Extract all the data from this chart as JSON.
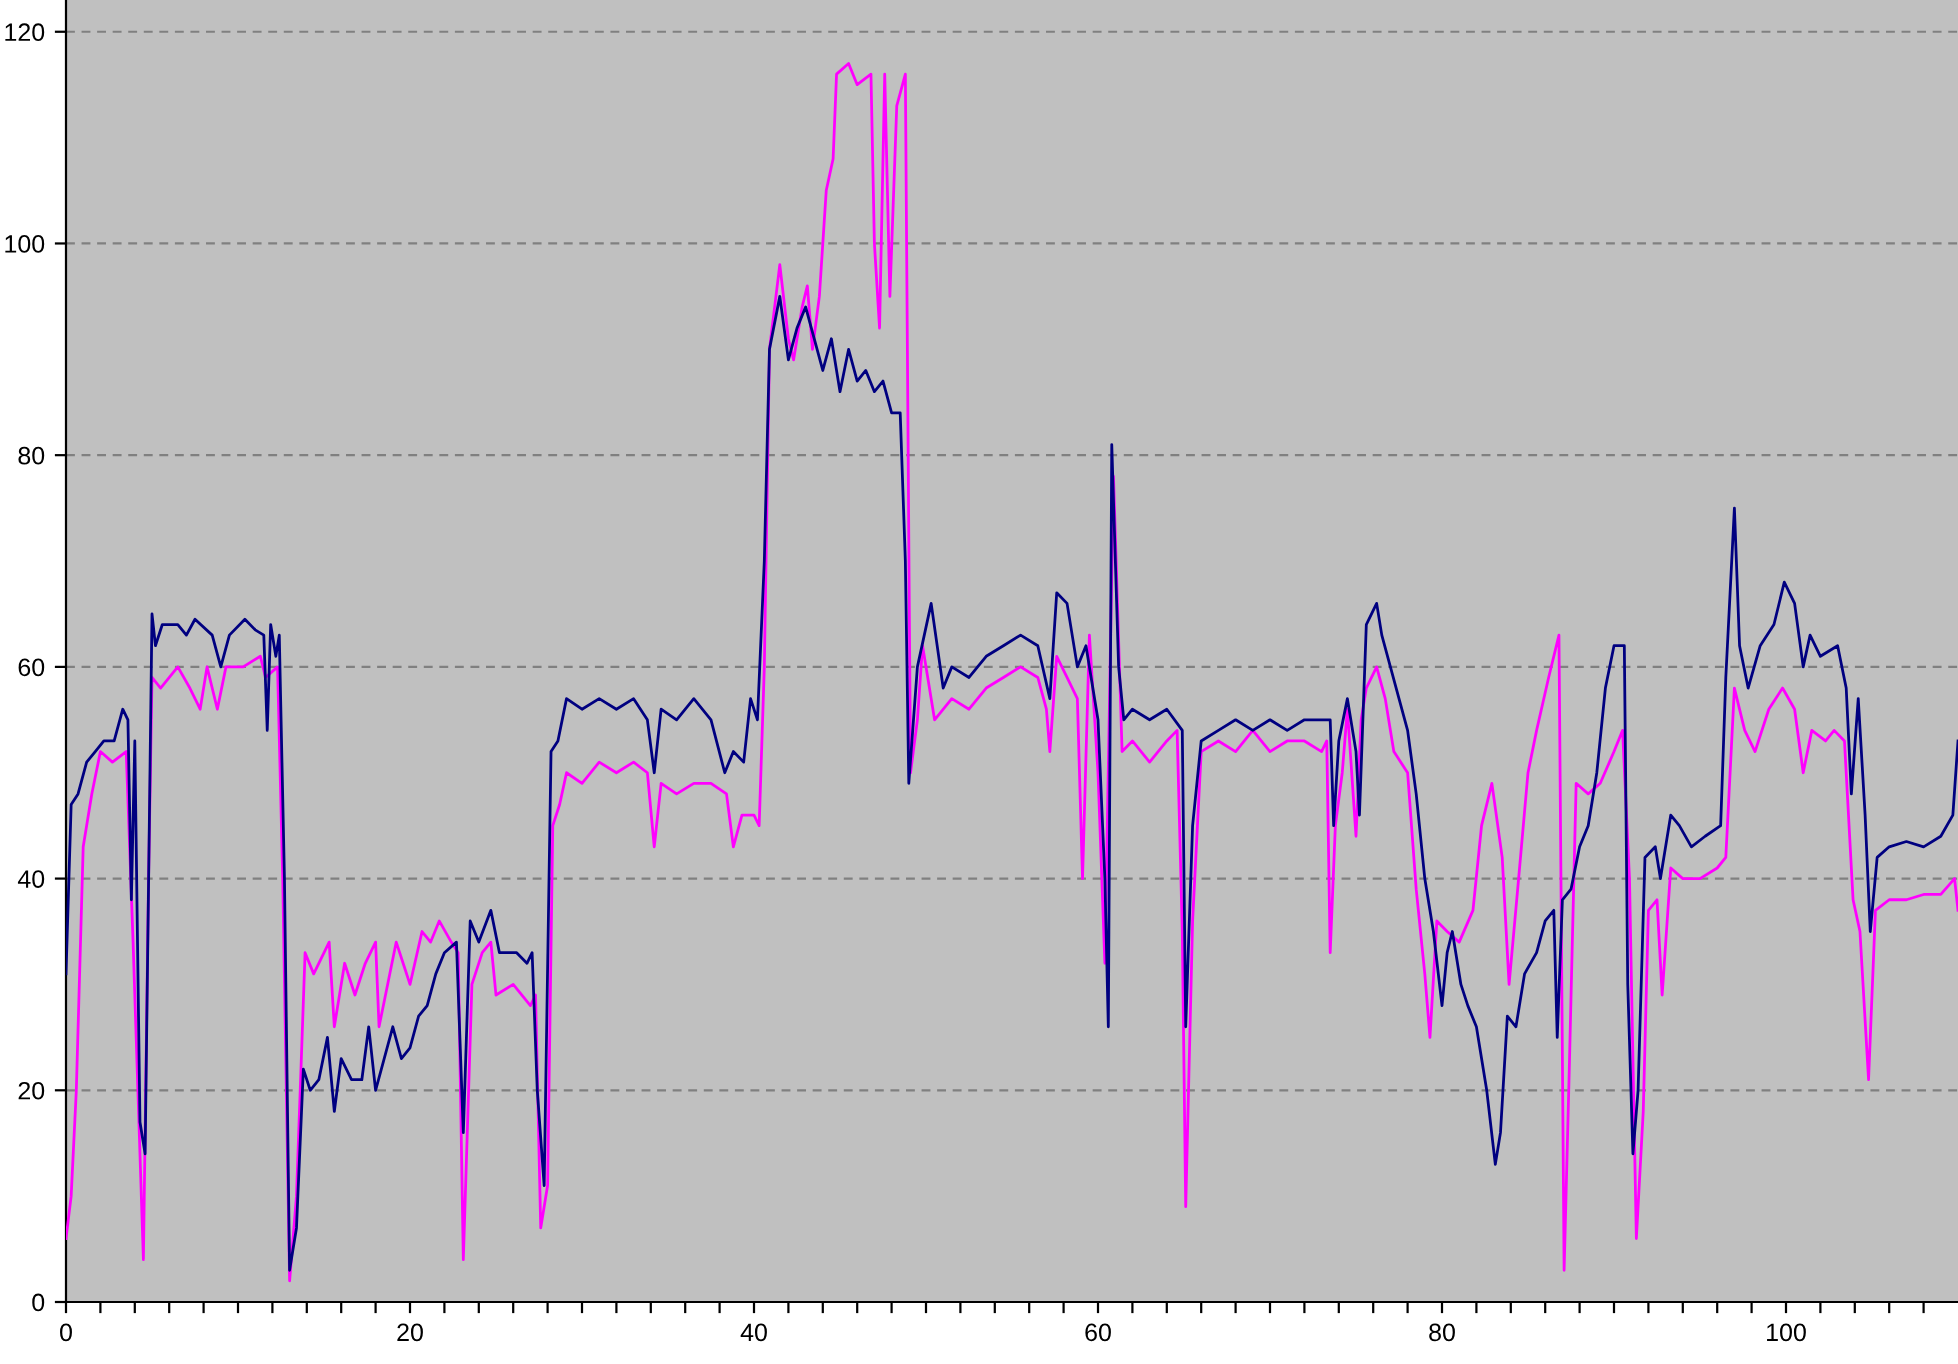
{
  "chart_data": {
    "type": "line",
    "xlim": [
      0,
      110
    ],
    "ylim": [
      0,
      123
    ],
    "xticks": [
      0,
      {
        "value": 2,
        "label": null
      },
      {
        "value": 4,
        "label": null
      },
      {
        "value": 6,
        "label": null
      },
      {
        "value": 8,
        "label": null
      },
      {
        "value": 10,
        "label": null
      },
      {
        "value": 12,
        "label": null
      },
      {
        "value": 14,
        "label": null
      },
      {
        "value": 16,
        "label": null
      },
      {
        "value": 18,
        "label": null
      },
      20,
      {
        "value": 22,
        "label": null
      },
      {
        "value": 24,
        "label": null
      },
      {
        "value": 26,
        "label": null
      },
      {
        "value": 28,
        "label": null
      },
      {
        "value": 30,
        "label": null
      },
      {
        "value": 32,
        "label": null
      },
      {
        "value": 34,
        "label": null
      },
      {
        "value": 36,
        "label": null
      },
      {
        "value": 38,
        "label": null
      },
      40,
      {
        "value": 42,
        "label": null
      },
      {
        "value": 44,
        "label": null
      },
      {
        "value": 46,
        "label": null
      },
      {
        "value": 48,
        "label": null
      },
      {
        "value": 50,
        "label": null
      },
      {
        "value": 52,
        "label": null
      },
      {
        "value": 54,
        "label": null
      },
      {
        "value": 56,
        "label": null
      },
      {
        "value": 58,
        "label": null
      },
      60,
      {
        "value": 62,
        "label": null
      },
      {
        "value": 64,
        "label": null
      },
      {
        "value": 66,
        "label": null
      },
      {
        "value": 68,
        "label": null
      },
      {
        "value": 70,
        "label": null
      },
      {
        "value": 72,
        "label": null
      },
      {
        "value": 74,
        "label": null
      },
      {
        "value": 76,
        "label": null
      },
      {
        "value": 78,
        "label": null
      },
      80,
      {
        "value": 82,
        "label": null
      },
      {
        "value": 84,
        "label": null
      },
      {
        "value": 86,
        "label": null
      },
      {
        "value": 88,
        "label": null
      },
      {
        "value": 90,
        "label": null
      },
      {
        "value": 92,
        "label": null
      },
      {
        "value": 94,
        "label": null
      },
      {
        "value": 96,
        "label": null
      },
      {
        "value": 98,
        "label": null
      },
      100,
      {
        "value": 102,
        "label": null
      },
      {
        "value": 104,
        "label": null
      },
      {
        "value": 106,
        "label": null
      },
      {
        "value": 108,
        "label": null
      }
    ],
    "yticks": [
      0,
      20,
      40,
      60,
      80,
      100,
      120
    ],
    "grid": "y",
    "line_style": "solid",
    "series": [
      {
        "color": "#000080",
        "x": [
          0,
          0.3,
          0.7,
          1.2,
          1.7,
          2.2,
          2.8,
          3.3,
          3.6,
          3.8,
          4.0,
          4.3,
          4.6,
          5.0,
          5.2,
          5.6,
          6.5,
          7.0,
          7.5,
          8.5,
          9.0,
          9.5,
          10.4,
          11.0,
          11.5,
          11.7,
          11.9,
          12.2,
          12.4,
          12.7,
          13.0,
          13.4,
          13.8,
          14.2,
          14.7,
          15.2,
          15.6,
          16.0,
          16.6,
          17.2,
          17.6,
          18.0,
          18.5,
          19.0,
          19.5,
          20.0,
          20.5,
          21.0,
          21.5,
          22.0,
          22.7,
          23.1,
          23.5,
          24.0,
          24.7,
          25.2,
          26.2,
          26.8,
          27.1,
          27.4,
          27.8,
          28.2,
          28.6,
          29.1,
          30.0,
          31.0,
          32.0,
          33.0,
          33.8,
          34.2,
          34.6,
          35.5,
          36.5,
          37.5,
          38.3,
          38.8,
          39.4,
          39.8,
          40.2,
          40.6,
          40.9,
          41.5,
          42.0,
          42.5,
          43.0,
          43.5,
          44.0,
          44.5,
          45.0,
          45.5,
          46.0,
          46.5,
          47.0,
          47.5,
          48.0,
          48.5,
          48.8,
          49.0,
          49.5,
          50.3,
          51.0,
          51.5,
          52.5,
          53.5,
          54.5,
          55.5,
          56.5,
          57.2,
          57.6,
          58.2,
          58.8,
          59.3,
          60.0,
          60.4,
          60.6,
          60.8,
          61.2,
          61.5,
          62.0,
          63.0,
          64.0,
          64.9,
          65.1,
          65.5,
          66.0,
          67.0,
          68.0,
          69.0,
          70.0,
          71.0,
          72.0,
          73.0,
          73.5,
          73.7,
          74.0,
          74.5,
          75.0,
          75.2,
          75.6,
          76.2,
          76.5,
          77.0,
          77.5,
          78.0,
          78.5,
          79.0,
          79.5,
          80.0,
          80.3,
          80.6,
          81.1,
          81.5,
          82.0,
          82.6,
          83.1,
          83.4,
          83.8,
          84.3,
          84.8,
          85.5,
          86.0,
          86.5,
          86.7,
          87.0,
          87.5,
          88.0,
          88.5,
          89.0,
          89.5,
          90.0,
          90.6,
          90.8,
          91.1,
          91.4,
          91.8,
          92.4,
          92.7,
          93.3,
          93.8,
          94.5,
          95.3,
          96.2,
          96.5,
          97.0,
          97.3,
          97.8,
          98.5,
          99.3,
          99.9,
          100.5,
          101.0,
          101.4,
          102.0,
          103.0,
          103.5,
          103.8,
          104.2,
          104.6,
          104.9,
          105.3,
          106.0,
          107.0,
          108.0,
          109.0,
          109.7,
          110.0
        ],
        "values": [
          31,
          47,
          48,
          51,
          52,
          53,
          53,
          56,
          55,
          38,
          53,
          17,
          14,
          65,
          62,
          64,
          64,
          63,
          64.5,
          63,
          60,
          63,
          64.5,
          63.5,
          63,
          54,
          64,
          61,
          63,
          40,
          3,
          7,
          22,
          20,
          21,
          25,
          18,
          23,
          21,
          21,
          26,
          20,
          23,
          26,
          23,
          24,
          27,
          28,
          31,
          33,
          34,
          16,
          36,
          34,
          37,
          33,
          33,
          32,
          33,
          20,
          11,
          52,
          53,
          57,
          56,
          57,
          56,
          57,
          55,
          50,
          56,
          55,
          57,
          55,
          50,
          52,
          51,
          57,
          55,
          70,
          90,
          95,
          89,
          92,
          94,
          91,
          88,
          91,
          86,
          90,
          87,
          88,
          86,
          87,
          84,
          84,
          70,
          49,
          60,
          66,
          58,
          60,
          59,
          61,
          62,
          63,
          62,
          57,
          67,
          66,
          60,
          62,
          55,
          40,
          26,
          81,
          60,
          55,
          56,
          55,
          56,
          54,
          26,
          45,
          53,
          54,
          55,
          54,
          55,
          54,
          55,
          55,
          55,
          45,
          53,
          57,
          52,
          46,
          64,
          66,
          63,
          60,
          57,
          54,
          48,
          40,
          35,
          28,
          33,
          35,
          30,
          28,
          26,
          20,
          13,
          16,
          27,
          26,
          31,
          33,
          36,
          37,
          25,
          38,
          39,
          43,
          45,
          50,
          58,
          62,
          62,
          30,
          14,
          20,
          42,
          43,
          40,
          46,
          45,
          43,
          44,
          45,
          59,
          75,
          62,
          58,
          62,
          64,
          68,
          66,
          60,
          63,
          61,
          62,
          58,
          48,
          57,
          46,
          35,
          42,
          43,
          43.5,
          43,
          44,
          46,
          53
        ]
      },
      {
        "color": "#ff00ff",
        "x": [
          0,
          0.3,
          0.6,
          1.0,
          1.5,
          2.0,
          2.7,
          3.5,
          3.9,
          4.5,
          4.8,
          5.0,
          5.5,
          6.5,
          7.2,
          7.8,
          8.2,
          8.8,
          9.3,
          10.3,
          11.3,
          11.6,
          12.3,
          12.6,
          13.0,
          13.4,
          13.9,
          14.4,
          15.3,
          15.6,
          16.2,
          16.8,
          17.4,
          18.0,
          18.2,
          18.7,
          19.2,
          19.6,
          20.0,
          20.7,
          21.2,
          21.7,
          22.4,
          22.8,
          23.1,
          23.6,
          24.2,
          24.7,
          25.0,
          26.0,
          27.0,
          27.3,
          27.6,
          28.0,
          28.3,
          28.7,
          29.1,
          30.0,
          31.0,
          32.0,
          33.0,
          33.8,
          34.2,
          34.6,
          35.5,
          36.5,
          37.5,
          38.4,
          38.8,
          39.3,
          40.0,
          40.3,
          40.6,
          40.9,
          41.5,
          42.0,
          42.3,
          42.8,
          43.1,
          43.4,
          43.8,
          44.2,
          44.6,
          44.8,
          45.5,
          46.0,
          46.8,
          47.0,
          47.3,
          47.6,
          47.9,
          48.3,
          48.8,
          49.1,
          49.5,
          49.8,
          50.5,
          51.5,
          52.5,
          53.5,
          54.5,
          55.5,
          56.5,
          57.0,
          57.2,
          57.6,
          58.2,
          58.8,
          59.1,
          59.5,
          60.0,
          60.4,
          60.9,
          61.4,
          62.0,
          63.0,
          64.0,
          64.6,
          64.9,
          65.1,
          65.5,
          66.0,
          67.0,
          68.0,
          69.0,
          70.0,
          71.0,
          72.0,
          73.0,
          73.3,
          73.5,
          73.8,
          74.2,
          74.5,
          75.0,
          75.3,
          75.6,
          76.2,
          76.7,
          77.2,
          78.0,
          78.5,
          79.0,
          79.3,
          79.7,
          80.3,
          81.0,
          81.8,
          82.3,
          82.9,
          83.5,
          83.9,
          84.4,
          85.0,
          85.5,
          86.2,
          86.8,
          87.1,
          87.4,
          87.8,
          88.5,
          89.2,
          90.0,
          90.5,
          90.9,
          91.3,
          91.7,
          92.0,
          92.5,
          92.8,
          93.3,
          94.0,
          95.0,
          96.0,
          96.5,
          97.0,
          97.6,
          98.2,
          99.0,
          99.8,
          100.5,
          101.0,
          101.5,
          102.3,
          102.8,
          103.4,
          103.9,
          104.3,
          104.8,
          105.2,
          106.0,
          107.0,
          108.0,
          109.0,
          109.8,
          110.0
        ],
        "values": [
          6,
          10,
          20,
          43,
          48,
          52,
          51,
          52,
          34,
          4,
          40,
          59,
          58,
          60,
          58,
          56,
          60,
          56,
          60,
          60,
          61,
          59,
          60,
          40,
          2,
          10,
          33,
          31,
          34,
          26,
          32,
          29,
          32,
          34,
          26,
          30,
          34,
          32,
          30,
          35,
          34,
          36,
          34,
          33,
          4,
          30,
          33,
          34,
          29,
          30,
          28,
          29,
          7,
          11,
          45,
          47,
          50,
          49,
          51,
          50,
          51,
          50,
          43,
          49,
          48,
          49,
          49,
          48,
          43,
          46,
          46,
          45,
          60,
          90,
          98,
          91,
          89,
          94,
          96,
          90,
          95,
          105,
          108,
          116,
          117,
          115,
          116,
          100,
          92,
          116,
          95,
          113,
          116,
          50,
          55,
          62,
          55,
          57,
          56,
          58,
          59,
          60,
          59,
          56,
          52,
          61,
          59,
          57,
          40,
          63,
          50,
          32,
          78,
          52,
          53,
          51,
          53,
          54,
          35,
          9,
          36,
          52,
          53,
          52,
          54,
          52,
          53,
          53,
          52,
          53,
          33,
          45,
          50,
          56,
          44,
          55,
          58,
          60,
          57,
          52,
          50,
          39,
          31,
          25,
          36,
          35,
          34,
          37,
          45,
          49,
          42,
          30,
          39,
          50,
          54,
          59,
          63,
          3,
          22,
          49,
          48,
          49,
          52,
          54,
          40,
          6,
          18,
          37,
          38,
          29,
          41,
          40,
          40,
          41,
          42,
          58,
          54,
          52,
          56,
          58,
          56,
          50,
          54,
          53,
          54,
          53,
          38,
          35,
          21,
          37,
          38,
          38,
          38.5,
          38.5,
          40,
          37
        ]
      }
    ]
  }
}
